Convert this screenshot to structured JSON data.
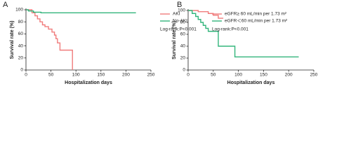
{
  "chart_data": [
    {
      "type": "line",
      "label": "A",
      "xlabel": "Hospitalization days",
      "ylabel": "Survival rate (%)",
      "xlim": [
        0,
        250
      ],
      "xticks": [
        0,
        50,
        100,
        150,
        200,
        250
      ],
      "ylim": [
        0,
        100
      ],
      "yticks": [
        0,
        20,
        40,
        60,
        80,
        100
      ],
      "annotation": "Log-rank:P<0.001",
      "series": [
        {
          "name": "AKI",
          "color": "#f07c7c",
          "x": [
            0,
            12,
            12,
            18,
            18,
            23,
            23,
            28,
            28,
            33,
            33,
            38,
            38,
            45,
            45,
            52,
            52,
            57,
            57,
            60,
            60,
            63,
            63,
            68,
            68,
            93,
            93
          ],
          "values": [
            100,
            100,
            95,
            95,
            90,
            90,
            85,
            85,
            80,
            80,
            75,
            75,
            72,
            72,
            68,
            68,
            63,
            63,
            58,
            58,
            52,
            52,
            45,
            45,
            33,
            33,
            0
          ]
        },
        {
          "name": "No-AKI",
          "color": "#33b57c",
          "x": [
            0,
            5,
            5,
            15,
            15,
            30,
            30,
            220
          ],
          "values": [
            100,
            100,
            98,
            98,
            96,
            96,
            95,
            95
          ]
        }
      ]
    },
    {
      "type": "line",
      "label": "B",
      "xlabel": "Hospitalization days",
      "ylabel": "Survival rate (%)",
      "xlim": [
        0,
        250
      ],
      "xticks": [
        0,
        50,
        100,
        150,
        200,
        250
      ],
      "ylim": [
        0,
        100
      ],
      "yticks": [
        0,
        20,
        40,
        60,
        80,
        100
      ],
      "annotation": "Log-rank:P<0.001",
      "series": [
        {
          "name": "eGFR≥ 60 mL/min per 1.73 m²",
          "color": "#f07c7c",
          "x": [
            0,
            20,
            20,
            40,
            40,
            50,
            50,
            60,
            60,
            70
          ],
          "values": [
            100,
            100,
            98,
            98,
            95,
            95,
            92,
            92,
            87,
            87
          ]
        },
        {
          "name": "eGFR＜60 mL/min per 1.73 m²",
          "color": "#33b57c",
          "x": [
            0,
            8,
            8,
            15,
            15,
            20,
            20,
            25,
            25,
            30,
            30,
            35,
            35,
            40,
            40,
            60,
            60,
            93,
            93,
            220
          ],
          "values": [
            100,
            100,
            95,
            95,
            90,
            90,
            85,
            85,
            80,
            80,
            75,
            75,
            70,
            70,
            65,
            65,
            40,
            40,
            22,
            22
          ]
        }
      ]
    }
  ]
}
